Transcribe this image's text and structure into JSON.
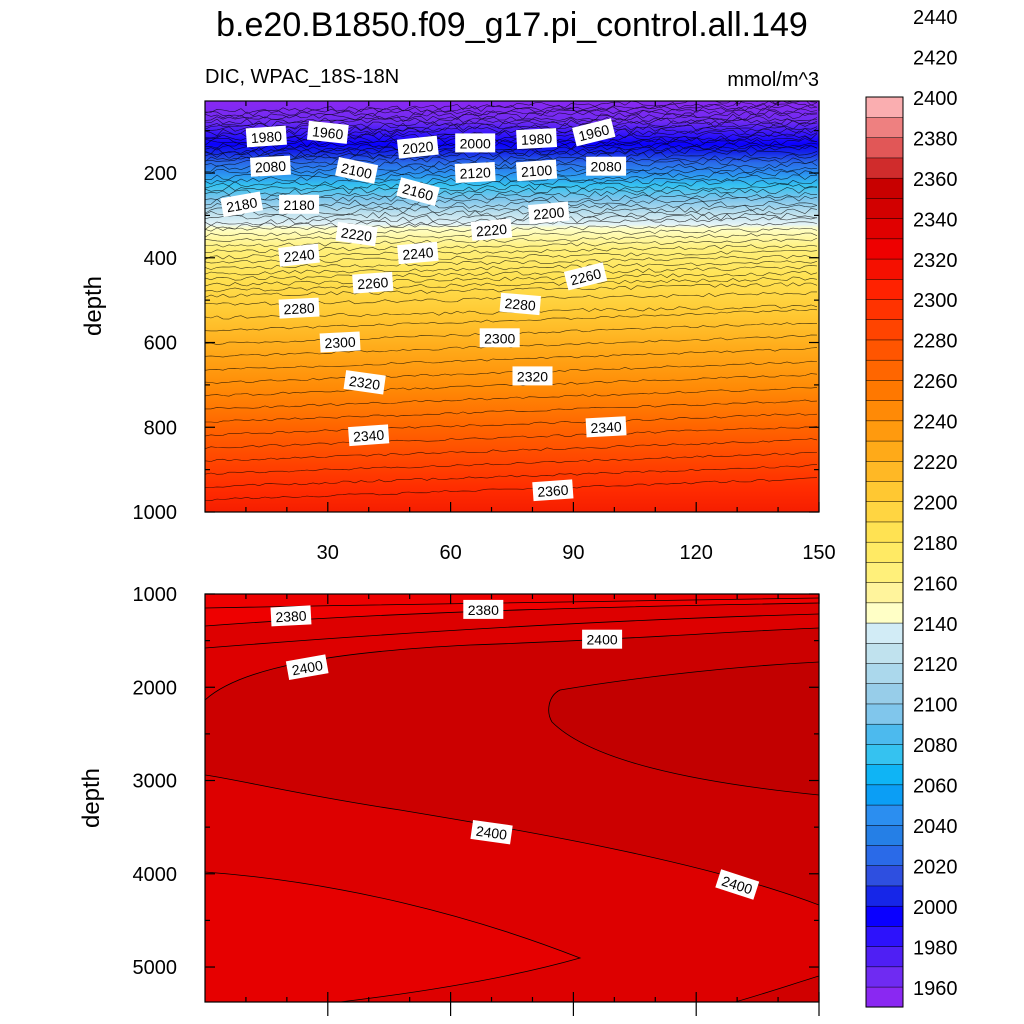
{
  "chart_data": {
    "type": "heatmap",
    "title": "b.e20.B1850.f09_g17.pi_control.all.149",
    "left_string": "DIC, WPAC_18S-18N",
    "right_string": "mmol/m^3",
    "colors": {
      "background": "#ffffff",
      "frame": "#000000"
    },
    "panels": [
      {
        "name": "upper",
        "xlabel": "",
        "ylabel": "depth",
        "xlim": [
          0,
          150
        ],
        "ylim": [
          1000,
          30
        ],
        "x_ticks": [
          "30",
          "60",
          "90",
          "120",
          "150"
        ],
        "y_ticks": [
          "200",
          "400",
          "600",
          "800",
          "1000"
        ],
        "contour_labels": [
          {
            "text": "1980",
            "x": 15,
            "depth": 115,
            "angle": -4
          },
          {
            "text": "1960",
            "x": 30,
            "depth": 105,
            "angle": 6
          },
          {
            "text": "2020",
            "x": 52,
            "depth": 140,
            "angle": -6
          },
          {
            "text": "2000",
            "x": 66,
            "depth": 130,
            "angle": 0
          },
          {
            "text": "1980",
            "x": 81,
            "depth": 120,
            "angle": -3
          },
          {
            "text": "1960",
            "x": 95,
            "depth": 105,
            "angle": -14
          },
          {
            "text": "2080",
            "x": 16,
            "depth": 185,
            "angle": -3
          },
          {
            "text": "2100",
            "x": 37,
            "depth": 195,
            "angle": 12
          },
          {
            "text": "2120",
            "x": 66,
            "depth": 200,
            "angle": -3
          },
          {
            "text": "2100",
            "x": 81,
            "depth": 195,
            "angle": -4
          },
          {
            "text": "2080",
            "x": 98,
            "depth": 185,
            "angle": 0
          },
          {
            "text": "2180",
            "x": 9,
            "depth": 275,
            "angle": -10
          },
          {
            "text": "2180",
            "x": 23,
            "depth": 275,
            "angle": 0
          },
          {
            "text": "2160",
            "x": 52,
            "depth": 245,
            "angle": 15
          },
          {
            "text": "2200",
            "x": 84,
            "depth": 295,
            "angle": -5
          },
          {
            "text": "2220",
            "x": 37,
            "depth": 345,
            "angle": 8
          },
          {
            "text": "2220",
            "x": 70,
            "depth": 335,
            "angle": -5
          },
          {
            "text": "2240",
            "x": 23,
            "depth": 395,
            "angle": -6
          },
          {
            "text": "2240",
            "x": 52,
            "depth": 390,
            "angle": -5
          },
          {
            "text": "2260",
            "x": 41,
            "depth": 460,
            "angle": -4
          },
          {
            "text": "2260",
            "x": 93,
            "depth": 445,
            "angle": -14
          },
          {
            "text": "2280",
            "x": 23,
            "depth": 520,
            "angle": -3
          },
          {
            "text": "2280",
            "x": 77,
            "depth": 510,
            "angle": 5
          },
          {
            "text": "2300",
            "x": 33,
            "depth": 600,
            "angle": -3
          },
          {
            "text": "2300",
            "x": 72,
            "depth": 590,
            "angle": 0
          },
          {
            "text": "2320",
            "x": 39,
            "depth": 695,
            "angle": 8
          },
          {
            "text": "2320",
            "x": 80,
            "depth": 680,
            "angle": 0
          },
          {
            "text": "2340",
            "x": 40,
            "depth": 820,
            "angle": -4
          },
          {
            "text": "2340",
            "x": 98,
            "depth": 800,
            "angle": -3
          },
          {
            "text": "2360",
            "x": 85,
            "depth": 950,
            "angle": -4
          }
        ]
      },
      {
        "name": "lower",
        "xlabel": "",
        "ylabel": "depth",
        "xlim": [
          0,
          150
        ],
        "ylim": [
          5375,
          1000
        ],
        "x_ticks": [
          "30",
          "60",
          "90",
          "120",
          "150"
        ],
        "y_ticks": [
          "1000",
          "2000",
          "3000",
          "4000",
          "5000"
        ],
        "contour_labels": [
          {
            "text": "2380",
            "x": 21,
            "depth": 1240,
            "angle": -3
          },
          {
            "text": "2380",
            "x": 68,
            "depth": 1170,
            "angle": 0
          },
          {
            "text": "2400",
            "x": 25,
            "depth": 1790,
            "angle": -10
          },
          {
            "text": "2400",
            "x": 97,
            "depth": 1490,
            "angle": 0
          },
          {
            "text": "2400",
            "x": 70,
            "depth": 3560,
            "angle": 8
          },
          {
            "text": "2400",
            "x": 130,
            "depth": 4120,
            "angle": 18
          }
        ]
      }
    ],
    "colorbar": {
      "boundaries": [
        "1960",
        "1980",
        "2000",
        "2020",
        "2040",
        "2060",
        "2080",
        "2100",
        "2120",
        "2140",
        "2160",
        "2180",
        "2200",
        "2220",
        "2240",
        "2260",
        "2280",
        "2300",
        "2320",
        "2340",
        "2360",
        "2380",
        "2400",
        "2420",
        "2440"
      ],
      "colors": [
        "#8a28f2",
        "#6f2bf2",
        "#4f1ff4",
        "#2d12fb",
        "#0a00ff",
        "#1626e8",
        "#2e4fe0",
        "#2a6ae8",
        "#257fe6",
        "#2b8ef0",
        "#0b9ef5",
        "#0fb4f5",
        "#35c2f0",
        "#4cbaee",
        "#80c6ec",
        "#97cde9",
        "#abd8ec",
        "#c0e2ee",
        "#d2ecf6",
        "#ffffc6",
        "#fff49c",
        "#fff07a",
        "#ffea64",
        "#ffe252",
        "#ffd541",
        "#ffc832",
        "#ffb825",
        "#ffaa18",
        "#ff9a0e",
        "#ff8a06",
        "#ff7800",
        "#ff6600",
        "#ff5500",
        "#ff4400",
        "#ff3300",
        "#ff2200",
        "#f51000",
        "#ee0000",
        "#e00000",
        "#d20000",
        "#c80000",
        "#d02c2c",
        "#e15757",
        "#ee8080",
        "#faaeb0"
      ]
    }
  }
}
